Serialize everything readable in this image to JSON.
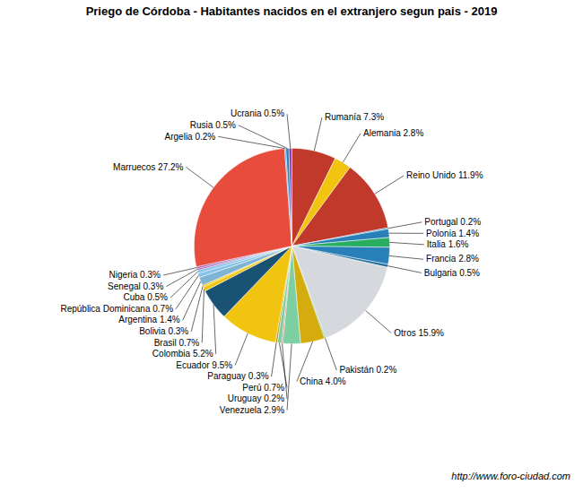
{
  "chart_data": {
    "type": "pie",
    "title": "Priego de Córdoba - Habitantes nacidos en el extranjero segun pais - 2019",
    "caption": "http://www.foro-ciudad.com",
    "categories": [
      "Rumanía 7.3%",
      "Alemania 2.8%",
      "Reino Unido 11.9%",
      "Portugal 0.2%",
      "Polonia 1.4%",
      "Italia 1.6%",
      "Francia 2.8%",
      "Bulgaria 0.5%",
      "Otros 15.9%",
      "Pakistán 0.2%",
      "China 4.0%",
      "Venezuela 2.9%",
      "Uruguay 0.2%",
      "Perú 0.7%",
      "Paraguay 0.3%",
      "Ecuador 9.5%",
      "Colombia 5.2%",
      "Brasil 0.7%",
      "Bolivia 0.3%",
      "Argentina 1.4%",
      "República Dominicana 0.7%",
      "Cuba 0.5%",
      "Senegal 0.3%",
      "Nigeria 0.3%",
      "Marruecos 27.2%",
      "Argelia 0.2%",
      "Rusia 0.5%",
      "Ucrania 0.5%"
    ],
    "values": [
      7.3,
      2.8,
      11.9,
      0.2,
      1.4,
      1.6,
      2.8,
      0.5,
      15.9,
      0.2,
      4.0,
      2.9,
      0.2,
      0.7,
      0.3,
      9.5,
      5.2,
      0.7,
      0.3,
      1.4,
      0.7,
      0.5,
      0.3,
      0.3,
      27.2,
      0.2,
      0.5,
      0.5
    ],
    "colors": [
      "#c0392b",
      "#f1c40f",
      "#c0392b",
      "#2980b9",
      "#2980b9",
      "#27ae60",
      "#2980b9",
      "#2471a3",
      "#d5d8dc",
      "#48c9b0",
      "#d4ac0d",
      "#7dcea0",
      "#e74c3c",
      "#7dcea0",
      "#b7950b",
      "#f1c40f",
      "#1a5276",
      "#f1c40f",
      "#f1c40f",
      "#7fb3d3",
      "#85c1e9",
      "#85c1e9",
      "#a569bd",
      "#9b59b6",
      "#e74c3c",
      "#3498db",
      "#2980b9",
      "#8e44ad"
    ]
  }
}
